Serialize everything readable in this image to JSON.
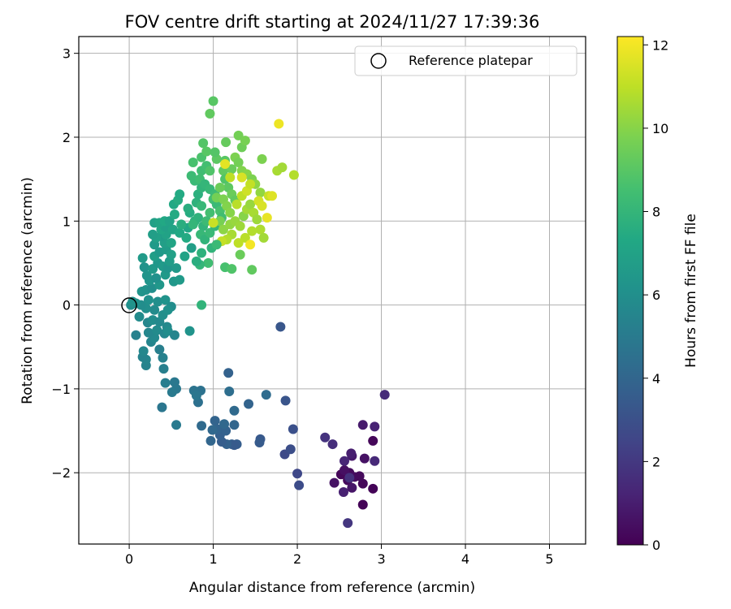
{
  "chart_data": {
    "type": "scatter",
    "title": "FOV centre drift starting at 2024/11/27 17:39:36",
    "xlabel": "Angular distance from reference (arcmin)",
    "ylabel": "Rotation from reference (arcmin)",
    "xlim": [
      -0.6,
      5.43
    ],
    "ylim": [
      -2.85,
      3.2
    ],
    "xticks": [
      0,
      1,
      2,
      3,
      4,
      5
    ],
    "yticks": [
      -2,
      -1,
      0,
      1,
      2,
      3
    ],
    "xtick_labels": [
      "0",
      "1",
      "2",
      "3",
      "4",
      "5"
    ],
    "ytick_labels": [
      "−2",
      "−1",
      "0",
      "1",
      "2",
      "3"
    ],
    "grid": true,
    "legend": {
      "position": "top-right",
      "entries": [
        {
          "label": "Reference platepar",
          "marker": "open-circle"
        }
      ]
    },
    "reference_point": {
      "x": 0,
      "y": 0
    },
    "colorbar": {
      "label": "Hours from first FF file",
      "colormap": "viridis",
      "range": [
        0,
        12.2
      ],
      "ticks": [
        0,
        2,
        4,
        6,
        8,
        10,
        12
      ],
      "tick_labels": [
        "0",
        "2",
        "4",
        "6",
        "8",
        "10",
        "12"
      ]
    },
    "points": [
      {
        "x": 2.78,
        "y": -2.38,
        "c": 0.1
      },
      {
        "x": 2.78,
        "y": -2.13,
        "c": 0.2
      },
      {
        "x": 2.9,
        "y": -2.19,
        "c": 0.1
      },
      {
        "x": 2.6,
        "y": -2.09,
        "c": 0.3
      },
      {
        "x": 2.62,
        "y": -2.0,
        "c": 0.3
      },
      {
        "x": 2.52,
        "y": -2.02,
        "c": 0.2
      },
      {
        "x": 2.68,
        "y": -2.05,
        "c": 0.4
      },
      {
        "x": 2.74,
        "y": -2.04,
        "c": 0.3
      },
      {
        "x": 2.56,
        "y": -1.97,
        "c": 0.5
      },
      {
        "x": 2.44,
        "y": -2.12,
        "c": 0.6
      },
      {
        "x": 2.65,
        "y": -2.18,
        "c": 0.7
      },
      {
        "x": 2.55,
        "y": -2.23,
        "c": 1.1
      },
      {
        "x": 2.65,
        "y": -1.8,
        "c": 0.8
      },
      {
        "x": 2.64,
        "y": -1.77,
        "c": 1.0
      },
      {
        "x": 2.8,
        "y": -1.83,
        "c": 0.6
      },
      {
        "x": 2.9,
        "y": -1.62,
        "c": 0.2
      },
      {
        "x": 2.78,
        "y": -1.43,
        "c": 0.9
      },
      {
        "x": 2.92,
        "y": -1.45,
        "c": 1.2
      },
      {
        "x": 3.04,
        "y": -1.07,
        "c": 1.5
      },
      {
        "x": 2.56,
        "y": -1.86,
        "c": 1.3
      },
      {
        "x": 2.92,
        "y": -1.86,
        "c": 1.4
      },
      {
        "x": 2.33,
        "y": -1.58,
        "c": 1.8
      },
      {
        "x": 2.42,
        "y": -1.66,
        "c": 1.6
      },
      {
        "x": 2.6,
        "y": -2.6,
        "c": 1.9
      },
      {
        "x": 2.62,
        "y": -2.06,
        "c": 1.7
      },
      {
        "x": 2.0,
        "y": -2.01,
        "c": 2.6
      },
      {
        "x": 2.02,
        "y": -2.15,
        "c": 2.8
      },
      {
        "x": 1.85,
        "y": -1.78,
        "c": 2.7
      },
      {
        "x": 1.92,
        "y": -1.72,
        "c": 2.9
      },
      {
        "x": 1.95,
        "y": -1.48,
        "c": 3.0
      },
      {
        "x": 1.86,
        "y": -1.14,
        "c": 3.2
      },
      {
        "x": 1.8,
        "y": -0.26,
        "c": 3.3
      },
      {
        "x": 1.56,
        "y": -1.6,
        "c": 3.4
      },
      {
        "x": 1.55,
        "y": -1.64,
        "c": 3.5
      },
      {
        "x": 1.28,
        "y": -1.66,
        "c": 3.6
      },
      {
        "x": 1.22,
        "y": -1.66,
        "c": 3.7
      },
      {
        "x": 1.25,
        "y": -1.67,
        "c": 3.5
      },
      {
        "x": 1.16,
        "y": -1.66,
        "c": 3.8
      },
      {
        "x": 1.1,
        "y": -1.63,
        "c": 3.6
      },
      {
        "x": 1.08,
        "y": -1.55,
        "c": 3.7
      },
      {
        "x": 1.05,
        "y": -1.48,
        "c": 3.9
      },
      {
        "x": 1.15,
        "y": -1.5,
        "c": 3.8
      },
      {
        "x": 1.25,
        "y": -1.43,
        "c": 4.0
      },
      {
        "x": 1.13,
        "y": -1.42,
        "c": 4.1
      },
      {
        "x": 1.02,
        "y": -1.38,
        "c": 3.9
      },
      {
        "x": 0.97,
        "y": -1.62,
        "c": 4.0
      },
      {
        "x": 0.86,
        "y": -1.44,
        "c": 4.2
      },
      {
        "x": 0.99,
        "y": -1.49,
        "c": 4.1
      },
      {
        "x": 1.25,
        "y": -1.26,
        "c": 4.2
      },
      {
        "x": 1.42,
        "y": -1.18,
        "c": 3.9
      },
      {
        "x": 1.63,
        "y": -1.07,
        "c": 4.3
      },
      {
        "x": 1.19,
        "y": -1.03,
        "c": 4.4
      },
      {
        "x": 1.18,
        "y": -0.81,
        "c": 3.8
      },
      {
        "x": 0.82,
        "y": -1.16,
        "c": 4.5
      },
      {
        "x": 0.85,
        "y": -1.02,
        "c": 4.6
      },
      {
        "x": 0.77,
        "y": -1.02,
        "c": 4.7
      },
      {
        "x": 0.8,
        "y": -1.08,
        "c": 4.8
      },
      {
        "x": 0.56,
        "y": -1.0,
        "c": 4.9
      },
      {
        "x": 0.51,
        "y": -1.04,
        "c": 5.0
      },
      {
        "x": 0.54,
        "y": -0.92,
        "c": 4.9
      },
      {
        "x": 0.43,
        "y": -0.93,
        "c": 5.1
      },
      {
        "x": 0.56,
        "y": -1.43,
        "c": 5.0
      },
      {
        "x": 0.39,
        "y": -1.22,
        "c": 4.8
      },
      {
        "x": 0.41,
        "y": -0.76,
        "c": 5.2
      },
      {
        "x": 0.4,
        "y": -0.63,
        "c": 5.3
      },
      {
        "x": 0.36,
        "y": -0.53,
        "c": 5.2
      },
      {
        "x": 0.2,
        "y": -0.72,
        "c": 5.4
      },
      {
        "x": 0.2,
        "y": -0.65,
        "c": 5.5
      },
      {
        "x": 0.16,
        "y": -0.62,
        "c": 5.4
      },
      {
        "x": 0.17,
        "y": -0.55,
        "c": 5.6
      },
      {
        "x": 0.08,
        "y": -0.36,
        "c": 5.3
      },
      {
        "x": 0.26,
        "y": -0.44,
        "c": 5.5
      },
      {
        "x": 0.3,
        "y": -0.39,
        "c": 5.7
      },
      {
        "x": 0.23,
        "y": -0.33,
        "c": 5.6
      },
      {
        "x": 0.33,
        "y": -0.3,
        "c": 5.8
      },
      {
        "x": 0.42,
        "y": -0.34,
        "c": 5.6
      },
      {
        "x": 0.45,
        "y": -0.26,
        "c": 5.7
      },
      {
        "x": 0.46,
        "y": -0.31,
        "c": 5.9
      },
      {
        "x": 0.54,
        "y": -0.36,
        "c": 5.5
      },
      {
        "x": 0.72,
        "y": -0.31,
        "c": 6.2
      },
      {
        "x": 0.12,
        "y": -0.14,
        "c": 5.8
      },
      {
        "x": 0.22,
        "y": -0.21,
        "c": 5.6
      },
      {
        "x": 0.28,
        "y": -0.18,
        "c": 5.9
      },
      {
        "x": 0.36,
        "y": -0.2,
        "c": 5.7
      },
      {
        "x": 0.4,
        "y": -0.12,
        "c": 6.0
      },
      {
        "x": 0.3,
        "y": -0.06,
        "c": 5.8
      },
      {
        "x": 0.2,
        "y": -0.04,
        "c": 6.0
      },
      {
        "x": 0.14,
        "y": 0.0,
        "c": 5.9
      },
      {
        "x": 0.08,
        "y": 0.02,
        "c": 6.1
      },
      {
        "x": 0.02,
        "y": 0.0,
        "c": 6.0
      },
      {
        "x": 0.04,
        "y": 0.04,
        "c": 6.2
      },
      {
        "x": 0.23,
        "y": 0.06,
        "c": 6.1
      },
      {
        "x": 0.34,
        "y": 0.04,
        "c": 6.0
      },
      {
        "x": 0.43,
        "y": 0.06,
        "c": 6.2
      },
      {
        "x": 0.5,
        "y": -0.02,
        "c": 5.9
      },
      {
        "x": 0.46,
        "y": -0.06,
        "c": 6.1
      },
      {
        "x": 0.15,
        "y": 0.16,
        "c": 6.3
      },
      {
        "x": 0.2,
        "y": 0.18,
        "c": 6.2
      },
      {
        "x": 0.27,
        "y": 0.2,
        "c": 6.0
      },
      {
        "x": 0.36,
        "y": 0.24,
        "c": 6.4
      },
      {
        "x": 0.24,
        "y": 0.29,
        "c": 6.3
      },
      {
        "x": 0.32,
        "y": 0.32,
        "c": 6.1
      },
      {
        "x": 0.43,
        "y": 0.36,
        "c": 6.5
      },
      {
        "x": 0.53,
        "y": 0.28,
        "c": 6.4
      },
      {
        "x": 0.6,
        "y": 0.3,
        "c": 6.6
      },
      {
        "x": 0.18,
        "y": 0.45,
        "c": 6.2
      },
      {
        "x": 0.21,
        "y": 0.35,
        "c": 6.3
      },
      {
        "x": 0.28,
        "y": 0.43,
        "c": 6.5
      },
      {
        "x": 0.34,
        "y": 0.5,
        "c": 6.4
      },
      {
        "x": 0.4,
        "y": 0.46,
        "c": 6.6
      },
      {
        "x": 0.46,
        "y": 0.44,
        "c": 6.3
      },
      {
        "x": 0.48,
        "y": 0.52,
        "c": 6.7
      },
      {
        "x": 0.56,
        "y": 0.44,
        "c": 6.5
      },
      {
        "x": 0.16,
        "y": 0.56,
        "c": 6.6
      },
      {
        "x": 0.3,
        "y": 0.58,
        "c": 6.8
      },
      {
        "x": 0.36,
        "y": 0.63,
        "c": 6.5
      },
      {
        "x": 0.44,
        "y": 0.66,
        "c": 6.7
      },
      {
        "x": 0.5,
        "y": 0.6,
        "c": 6.9
      },
      {
        "x": 0.66,
        "y": 0.58,
        "c": 7.0
      },
      {
        "x": 0.74,
        "y": 0.68,
        "c": 6.8
      },
      {
        "x": 0.3,
        "y": 0.72,
        "c": 6.6
      },
      {
        "x": 0.42,
        "y": 0.74,
        "c": 6.8
      },
      {
        "x": 0.5,
        "y": 0.74,
        "c": 7.1
      },
      {
        "x": 0.38,
        "y": 0.82,
        "c": 6.7
      },
      {
        "x": 0.32,
        "y": 0.8,
        "c": 6.9
      },
      {
        "x": 0.44,
        "y": 0.84,
        "c": 7.0
      },
      {
        "x": 0.28,
        "y": 0.84,
        "c": 6.8
      },
      {
        "x": 0.38,
        "y": 0.9,
        "c": 7.2
      },
      {
        "x": 0.43,
        "y": 0.93,
        "c": 6.9
      },
      {
        "x": 0.52,
        "y": 0.9,
        "c": 7.1
      },
      {
        "x": 0.6,
        "y": 0.86,
        "c": 7.3
      },
      {
        "x": 0.68,
        "y": 0.8,
        "c": 7.4
      },
      {
        "x": 0.7,
        "y": 0.92,
        "c": 7.2
      },
      {
        "x": 0.3,
        "y": 0.98,
        "c": 6.9
      },
      {
        "x": 0.36,
        "y": 0.98,
        "c": 7.1
      },
      {
        "x": 0.42,
        "y": 1.0,
        "c": 7.3
      },
      {
        "x": 0.48,
        "y": 1.0,
        "c": 7.0
      },
      {
        "x": 0.54,
        "y": 1.08,
        "c": 7.4
      },
      {
        "x": 0.62,
        "y": 0.96,
        "c": 7.6
      },
      {
        "x": 0.72,
        "y": 1.1,
        "c": 7.5
      },
      {
        "x": 0.53,
        "y": 1.2,
        "c": 7.3
      },
      {
        "x": 0.58,
        "y": 1.25,
        "c": 7.5
      },
      {
        "x": 0.6,
        "y": 1.32,
        "c": 7.4
      },
      {
        "x": 0.7,
        "y": 1.15,
        "c": 7.6
      },
      {
        "x": 0.78,
        "y": 1.0,
        "c": 7.7
      },
      {
        "x": 0.82,
        "y": 1.04,
        "c": 7.8
      },
      {
        "x": 0.88,
        "y": 0.94,
        "c": 7.9
      },
      {
        "x": 0.76,
        "y": 0.96,
        "c": 8.0
      },
      {
        "x": 0.85,
        "y": 0.84,
        "c": 8.1
      },
      {
        "x": 0.9,
        "y": 0.78,
        "c": 7.9
      },
      {
        "x": 0.96,
        "y": 0.86,
        "c": 8.2
      },
      {
        "x": 1.02,
        "y": 0.94,
        "c": 8.0
      },
      {
        "x": 0.8,
        "y": 1.22,
        "c": 7.8
      },
      {
        "x": 0.82,
        "y": 1.32,
        "c": 7.7
      },
      {
        "x": 0.86,
        "y": 1.4,
        "c": 7.9
      },
      {
        "x": 0.78,
        "y": 1.48,
        "c": 8.2
      },
      {
        "x": 0.74,
        "y": 1.54,
        "c": 8.3
      },
      {
        "x": 0.84,
        "y": 1.5,
        "c": 8.4
      },
      {
        "x": 0.9,
        "y": 1.44,
        "c": 8.0
      },
      {
        "x": 0.96,
        "y": 1.38,
        "c": 8.1
      },
      {
        "x": 1.02,
        "y": 1.32,
        "c": 8.3
      },
      {
        "x": 1.0,
        "y": 1.26,
        "c": 8.5
      },
      {
        "x": 1.04,
        "y": 1.2,
        "c": 8.2
      },
      {
        "x": 1.08,
        "y": 1.12,
        "c": 8.6
      },
      {
        "x": 1.1,
        "y": 1.04,
        "c": 8.4
      },
      {
        "x": 0.96,
        "y": 1.1,
        "c": 8.5
      },
      {
        "x": 0.86,
        "y": 1.18,
        "c": 8.1
      },
      {
        "x": 0.92,
        "y": 1.0,
        "c": 8.3
      },
      {
        "x": 0.86,
        "y": 1.6,
        "c": 8.4
      },
      {
        "x": 0.76,
        "y": 1.7,
        "c": 8.6
      },
      {
        "x": 0.86,
        "y": 1.76,
        "c": 8.7
      },
      {
        "x": 0.92,
        "y": 1.66,
        "c": 8.5
      },
      {
        "x": 0.96,
        "y": 1.6,
        "c": 8.8
      },
      {
        "x": 0.88,
        "y": 1.93,
        "c": 8.9
      },
      {
        "x": 0.92,
        "y": 1.83,
        "c": 9.0
      },
      {
        "x": 1.04,
        "y": 1.74,
        "c": 9.1
      },
      {
        "x": 1.02,
        "y": 1.82,
        "c": 8.9
      },
      {
        "x": 1.12,
        "y": 1.6,
        "c": 9.2
      },
      {
        "x": 1.14,
        "y": 1.72,
        "c": 9.0
      },
      {
        "x": 1.15,
        "y": 1.94,
        "c": 9.3
      },
      {
        "x": 1.14,
        "y": 1.5,
        "c": 8.8
      },
      {
        "x": 1.18,
        "y": 1.4,
        "c": 9.1
      },
      {
        "x": 1.22,
        "y": 1.32,
        "c": 9.4
      },
      {
        "x": 1.26,
        "y": 1.25,
        "c": 9.2
      },
      {
        "x": 1.0,
        "y": 2.43,
        "c": 9.0
      },
      {
        "x": 0.96,
        "y": 2.28,
        "c": 9.2
      },
      {
        "x": 1.3,
        "y": 2.02,
        "c": 9.6
      },
      {
        "x": 1.34,
        "y": 1.88,
        "c": 9.5
      },
      {
        "x": 1.38,
        "y": 1.96,
        "c": 9.7
      },
      {
        "x": 1.26,
        "y": 1.76,
        "c": 9.8
      },
      {
        "x": 1.3,
        "y": 1.7,
        "c": 9.6
      },
      {
        "x": 1.22,
        "y": 1.62,
        "c": 9.4
      },
      {
        "x": 1.34,
        "y": 1.6,
        "c": 9.9
      },
      {
        "x": 1.4,
        "y": 1.56,
        "c": 10.0
      },
      {
        "x": 1.46,
        "y": 1.5,
        "c": 9.8
      },
      {
        "x": 1.5,
        "y": 1.44,
        "c": 10.1
      },
      {
        "x": 1.56,
        "y": 1.34,
        "c": 10.2
      },
      {
        "x": 1.58,
        "y": 1.74,
        "c": 9.8
      },
      {
        "x": 1.76,
        "y": 1.6,
        "c": 10.6
      },
      {
        "x": 1.96,
        "y": 1.55,
        "c": 10.8
      },
      {
        "x": 1.82,
        "y": 1.64,
        "c": 10.5
      },
      {
        "x": 1.08,
        "y": 1.4,
        "c": 9.4
      },
      {
        "x": 1.04,
        "y": 1.28,
        "c": 9.6
      },
      {
        "x": 1.12,
        "y": 1.26,
        "c": 9.8
      },
      {
        "x": 1.16,
        "y": 1.18,
        "c": 9.9
      },
      {
        "x": 1.2,
        "y": 1.1,
        "c": 10.0
      },
      {
        "x": 1.08,
        "y": 1.0,
        "c": 9.7
      },
      {
        "x": 1.12,
        "y": 0.9,
        "c": 10.1
      },
      {
        "x": 1.2,
        "y": 0.96,
        "c": 10.2
      },
      {
        "x": 1.26,
        "y": 1.0,
        "c": 10.3
      },
      {
        "x": 1.32,
        "y": 0.94,
        "c": 10.4
      },
      {
        "x": 1.36,
        "y": 1.06,
        "c": 10.0
      },
      {
        "x": 1.4,
        "y": 1.14,
        "c": 10.5
      },
      {
        "x": 1.44,
        "y": 1.2,
        "c": 10.3
      },
      {
        "x": 1.48,
        "y": 1.1,
        "c": 10.6
      },
      {
        "x": 1.52,
        "y": 1.02,
        "c": 10.4
      },
      {
        "x": 1.56,
        "y": 0.9,
        "c": 10.7
      },
      {
        "x": 1.6,
        "y": 0.8,
        "c": 10.5
      },
      {
        "x": 1.46,
        "y": 0.88,
        "c": 10.8
      },
      {
        "x": 1.38,
        "y": 0.8,
        "c": 10.9
      },
      {
        "x": 1.3,
        "y": 0.74,
        "c": 11.0
      },
      {
        "x": 1.22,
        "y": 0.84,
        "c": 10.6
      },
      {
        "x": 1.16,
        "y": 0.78,
        "c": 10.8
      },
      {
        "x": 1.1,
        "y": 0.76,
        "c": 11.1
      },
      {
        "x": 1.0,
        "y": 0.98,
        "c": 11.2
      },
      {
        "x": 1.28,
        "y": 1.2,
        "c": 10.9
      },
      {
        "x": 1.34,
        "y": 1.3,
        "c": 11.0
      },
      {
        "x": 1.4,
        "y": 1.36,
        "c": 11.3
      },
      {
        "x": 1.44,
        "y": 1.44,
        "c": 11.1
      },
      {
        "x": 1.54,
        "y": 1.24,
        "c": 11.4
      },
      {
        "x": 1.58,
        "y": 1.18,
        "c": 11.5
      },
      {
        "x": 1.66,
        "y": 1.3,
        "c": 11.2
      },
      {
        "x": 1.7,
        "y": 1.3,
        "c": 11.6
      },
      {
        "x": 1.64,
        "y": 1.04,
        "c": 11.8
      },
      {
        "x": 1.78,
        "y": 2.16,
        "c": 11.9
      },
      {
        "x": 1.44,
        "y": 0.72,
        "c": 12.0
      },
      {
        "x": 1.14,
        "y": 1.68,
        "c": 11.7
      },
      {
        "x": 1.34,
        "y": 1.52,
        "c": 11.5
      },
      {
        "x": 1.2,
        "y": 1.52,
        "c": 11.0
      },
      {
        "x": 0.98,
        "y": 0.68,
        "c": 7.9
      },
      {
        "x": 1.04,
        "y": 0.72,
        "c": 8.2
      },
      {
        "x": 0.94,
        "y": 0.5,
        "c": 8.4
      },
      {
        "x": 1.14,
        "y": 0.45,
        "c": 8.6
      },
      {
        "x": 1.22,
        "y": 0.43,
        "c": 8.8
      },
      {
        "x": 1.46,
        "y": 0.42,
        "c": 9.2
      },
      {
        "x": 1.32,
        "y": 0.6,
        "c": 9.4
      },
      {
        "x": 0.84,
        "y": 0.48,
        "c": 8.0
      },
      {
        "x": 0.86,
        "y": 0.0,
        "c": 7.9
      },
      {
        "x": 0.8,
        "y": 0.52,
        "c": 7.6
      },
      {
        "x": 0.86,
        "y": 0.62,
        "c": 7.8
      }
    ]
  }
}
